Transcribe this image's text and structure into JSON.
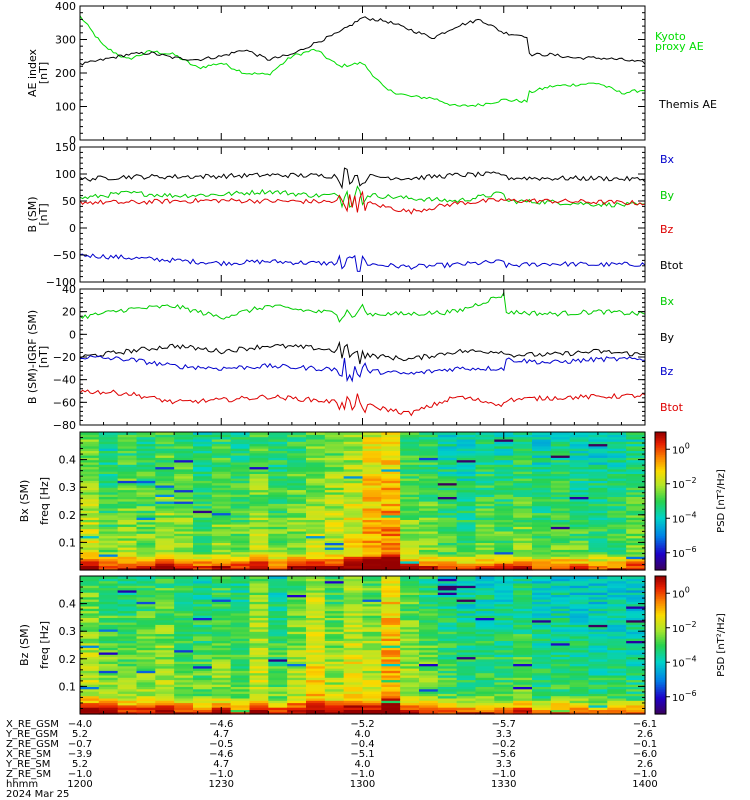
{
  "chart_data": [
    {
      "type": "line",
      "id": "ae",
      "ylabel": "AE index",
      "yunit": "[nT]",
      "ylim": [
        0,
        400
      ],
      "yticks": [
        0,
        100,
        200,
        300,
        400
      ],
      "xlim": [
        1200,
        1400
      ],
      "series": [
        {
          "name": "Kyoto proxy AE",
          "color": "#00dd00",
          "legend_lines": [
            "Kyoto",
            "proxy AE"
          ],
          "x": [
            1200,
            1205,
            1210,
            1215,
            1220,
            1225,
            1230,
            1235,
            1240,
            1245,
            1250,
            1255,
            1260,
            1265,
            1270,
            1275,
            1280,
            1285,
            1290,
            1295,
            1300,
            1305,
            1310,
            1315,
            1320,
            1325,
            1330,
            1335,
            1340,
            1345,
            1350,
            1355,
            1360,
            1365,
            1370,
            1375,
            1380,
            1385,
            1390,
            1395,
            1400
          ],
          "values": [
            370,
            280,
            240,
            265,
            255,
            215,
            230,
            200,
            195,
            250,
            270,
            220,
            230,
            150,
            130,
            125,
            100,
            105,
            120,
            115,
            100,
            105,
            140,
            170,
            140,
            120,
            125,
            140,
            160,
            165,
            170,
            140,
            150,
            155,
            160,
            125,
            110,
            130,
            160,
            200,
            245
          ]
        },
        {
          "name": "Themis AE",
          "color": "#000000",
          "legend_lines": [
            "Themis AE"
          ],
          "x": [
            1200,
            1205,
            1210,
            1215,
            1220,
            1225,
            1230,
            1235,
            1240,
            1245,
            1250,
            1255,
            1260,
            1265,
            1270,
            1275,
            1280,
            1285,
            1290,
            1295,
            1300,
            1305,
            1310,
            1315,
            1320,
            1325,
            1330,
            1335,
            1340,
            1345,
            1350,
            1355,
            1360,
            1365,
            1370,
            1375,
            1380,
            1385,
            1390,
            1395,
            1400
          ],
          "values": [
            225,
            240,
            255,
            260,
            245,
            240,
            250,
            270,
            240,
            255,
            290,
            320,
            365,
            355,
            330,
            305,
            340,
            360,
            320,
            310,
            290,
            330,
            335,
            315,
            300,
            270,
            265,
            255,
            255,
            245,
            245,
            240,
            230,
            235,
            230,
            220,
            225,
            240,
            210,
            220,
            215
          ]
        }
      ]
    },
    {
      "type": "line",
      "id": "b_sm",
      "ylabel": "B (SM)",
      "yunit": "[nT]",
      "ylim": [
        -100,
        150
      ],
      "yticks": [
        -100,
        -50,
        0,
        50,
        100,
        150
      ],
      "xlim": [
        1200,
        1400
      ],
      "series": [
        {
          "name": "Bx",
          "color": "#0000cc",
          "x": [
            1200,
            1210,
            1220,
            1230,
            1240,
            1250,
            1260,
            1270,
            1280,
            1290,
            1300,
            1310,
            1320,
            1330,
            1340,
            1350,
            1360,
            1370,
            1380,
            1390,
            1400
          ],
          "values": [
            -50,
            -55,
            -60,
            -65,
            -62,
            -65,
            -66,
            -72,
            -68,
            -62,
            -55,
            -60,
            -65,
            -70,
            -66,
            -68,
            -67,
            -70,
            -72,
            -73,
            -72
          ]
        },
        {
          "name": "By",
          "color": "#00cc00",
          "x": [
            1200,
            1210,
            1220,
            1230,
            1240,
            1250,
            1260,
            1270,
            1280,
            1290,
            1300,
            1310,
            1320,
            1330,
            1340,
            1350,
            1360,
            1370,
            1380,
            1390,
            1400
          ],
          "values": [
            55,
            65,
            60,
            62,
            68,
            60,
            62,
            55,
            50,
            65,
            58,
            55,
            52,
            50,
            48,
            44,
            42,
            40,
            38,
            37,
            36
          ]
        },
        {
          "name": "Bz",
          "color": "#dd0000",
          "x": [
            1200,
            1210,
            1220,
            1230,
            1240,
            1250,
            1260,
            1270,
            1280,
            1290,
            1300,
            1310,
            1320,
            1330,
            1340,
            1350,
            1360,
            1370,
            1380,
            1390,
            1400
          ],
          "values": [
            48,
            47,
            50,
            51,
            50,
            49,
            48,
            30,
            46,
            52,
            55,
            53,
            52,
            51,
            50,
            48,
            46,
            45,
            44,
            43,
            43
          ]
        },
        {
          "name": "Btot",
          "color": "#000000",
          "x": [
            1200,
            1210,
            1220,
            1230,
            1240,
            1250,
            1260,
            1270,
            1280,
            1290,
            1300,
            1310,
            1320,
            1330,
            1340,
            1350,
            1360,
            1370,
            1380,
            1390,
            1400
          ],
          "values": [
            90,
            95,
            95,
            96,
            98,
            97,
            96,
            92,
            98,
            100,
            95,
            95,
            92,
            93,
            92,
            92,
            90,
            92,
            93,
            92,
            93
          ]
        }
      ]
    },
    {
      "type": "line",
      "id": "b_igrf",
      "ylabel": "B (SM)-IGRF (SM)",
      "yunit": "[nT]",
      "ylim": [
        -80,
        40
      ],
      "yticks": [
        -80,
        -60,
        -40,
        -20,
        0,
        20,
        40
      ],
      "xlim": [
        1200,
        1400
      ],
      "series": [
        {
          "name": "Bx",
          "color": "#00cc00",
          "x": [
            1200,
            1210,
            1220,
            1230,
            1240,
            1250,
            1260,
            1270,
            1280,
            1290,
            1300,
            1310,
            1320,
            1330,
            1340,
            1350,
            1360,
            1370,
            1380,
            1390,
            1400
          ],
          "values": [
            15,
            22,
            25,
            15,
            25,
            20,
            18,
            18,
            20,
            35,
            22,
            20,
            22,
            20,
            18,
            20,
            18,
            15,
            16,
            14,
            13
          ]
        },
        {
          "name": "By",
          "color": "#000000",
          "x": [
            1200,
            1210,
            1220,
            1230,
            1240,
            1250,
            1260,
            1270,
            1280,
            1290,
            1300,
            1310,
            1320,
            1330,
            1340,
            1350,
            1360,
            1370,
            1380,
            1390,
            1400
          ],
          "values": [
            -20,
            -15,
            -10,
            -15,
            -10,
            -12,
            -18,
            -22,
            -15,
            -15,
            -18,
            -20,
            -15,
            -18,
            -18,
            -15,
            -18,
            -22,
            -20,
            -20,
            -18
          ]
        },
        {
          "name": "Bz",
          "color": "#0000cc",
          "x": [
            1200,
            1210,
            1220,
            1230,
            1240,
            1250,
            1260,
            1270,
            1280,
            1290,
            1300,
            1310,
            1320,
            1330,
            1340,
            1350,
            1360,
            1370,
            1380,
            1390,
            1400
          ],
          "values": [
            -20,
            -22,
            -28,
            -30,
            -28,
            -30,
            -32,
            -35,
            -30,
            -30,
            -25,
            -22,
            -20,
            -22,
            -25,
            -22,
            -22,
            -25,
            -25,
            -25,
            -25
          ]
        },
        {
          "name": "Btot",
          "color": "#dd0000",
          "x": [
            1200,
            1210,
            1220,
            1230,
            1240,
            1250,
            1260,
            1270,
            1280,
            1290,
            1300,
            1310,
            1320,
            1330,
            1340,
            1350,
            1360,
            1370,
            1380,
            1390,
            1400
          ],
          "values": [
            -50,
            -52,
            -60,
            -58,
            -55,
            -58,
            -62,
            -70,
            -55,
            -62,
            -55,
            -52,
            -55,
            -58,
            -56,
            -55,
            -54,
            -55,
            -52,
            -50,
            -48
          ]
        }
      ]
    },
    {
      "type": "heatmap",
      "id": "bx_psd",
      "ylabel": "Bx (SM)",
      "ylabel2": "freq [Hz]",
      "ylim": [
        0,
        0.5
      ],
      "yticks": [
        0.1,
        0.2,
        0.3,
        0.4
      ],
      "xlim": [
        1200,
        1400
      ],
      "colorbar_label": "PSD [nT²/Hz]",
      "colorbar_ticks": [
        {
          "base": "10",
          "exp": "0"
        },
        {
          "base": "10",
          "exp": "−2"
        },
        {
          "base": "10",
          "exp": "−4"
        },
        {
          "base": "10",
          "exp": "−6"
        }
      ],
      "colorbar_tick_levels": [
        0,
        -2,
        -4,
        -6
      ],
      "colorbar_range": [
        -7,
        1
      ],
      "columns": 30,
      "column_level": [
        -1.5,
        -2.5,
        -2.0,
        -2.2,
        -1.8,
        -2.0,
        -2.5,
        -2.0,
        -2.3,
        -1.8,
        -2.4,
        -2.0,
        -1.6,
        -1.5,
        -1.2,
        -0.5,
        -0.2,
        -2.0,
        -2.2,
        -2.6,
        -2.8,
        -2.4,
        -2.5,
        -2.2,
        -2.7,
        -2.5,
        -2.6,
        -2.8,
        -2.7,
        -2.4
      ],
      "band_gradient": 0.5
    },
    {
      "type": "heatmap",
      "id": "bz_psd",
      "ylabel": "Bz (SM)",
      "ylabel2": "freq [Hz]",
      "ylim": [
        0,
        0.5
      ],
      "yticks": [
        0.1,
        0.2,
        0.3,
        0.4
      ],
      "xlim": [
        1200,
        1400
      ],
      "colorbar_label": "PSD [nT²/Hz]",
      "colorbar_ticks": [
        {
          "base": "10",
          "exp": "0"
        },
        {
          "base": "10",
          "exp": "−2"
        },
        {
          "base": "10",
          "exp": "−4"
        },
        {
          "base": "10",
          "exp": "−6"
        }
      ],
      "colorbar_tick_levels": [
        0,
        -2,
        -4,
        -6
      ],
      "colorbar_range": [
        -7,
        1
      ],
      "columns": 30,
      "column_level": [
        -1.5,
        -2.0,
        -2.2,
        -2.0,
        -1.8,
        -2.2,
        -2.4,
        -2.0,
        -2.5,
        -1.5,
        -2.5,
        -1.8,
        -1.0,
        -1.8,
        -1.2,
        -1.6,
        -0.3,
        -1.8,
        -2.2,
        -2.6,
        -2.8,
        -2.6,
        -2.8,
        -2.4,
        -2.9,
        -2.8,
        -2.9,
        -3.0,
        -3.0,
        -3.0
      ],
      "band_gradient": 0.5
    }
  ],
  "orbit_table": {
    "xtick_positions": [
      1200,
      1230,
      1300,
      1330,
      1400
    ],
    "rows": [
      {
        "label": "X_RE_GSM",
        "values": [
          "−4.0",
          "−4.6",
          "−5.2",
          "−5.7",
          "−6.1"
        ]
      },
      {
        "label": "Y_RE_GSM",
        "values": [
          "5.2",
          "4.7",
          "4.0",
          "3.3",
          "2.6"
        ]
      },
      {
        "label": "Z_RE_GSM",
        "values": [
          "−0.7",
          "−0.5",
          "−0.4",
          "−0.2",
          "−0.1"
        ]
      },
      {
        "label": "X_RE_SM",
        "values": [
          "−3.9",
          "−4.6",
          "−5.1",
          "−5.6",
          "−6.0"
        ]
      },
      {
        "label": "Y_RE_SM",
        "values": [
          "5.2",
          "4.7",
          "4.0",
          "3.3",
          "2.6"
        ]
      },
      {
        "label": "Z_RE_SM",
        "values": [
          "−1.0",
          "−1.0",
          "−1.0",
          "−1.0",
          "−1.0"
        ]
      },
      {
        "label": "hhmm",
        "values": [
          "1200",
          "1230",
          "1300",
          "1330",
          "1400"
        ]
      }
    ],
    "date": "2024 Mar 25"
  },
  "colors": {
    "axis": "#000000",
    "background": "#ffffff"
  }
}
